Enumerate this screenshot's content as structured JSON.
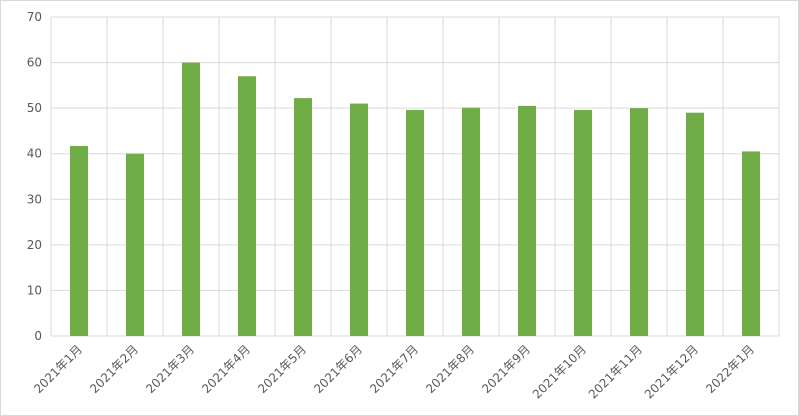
{
  "chart_data": {
    "type": "bar",
    "categories": [
      "2021年1月",
      "2021年2月",
      "2021年3月",
      "2021年4月",
      "2021年5月",
      "2021年6月",
      "2021年7月",
      "2021年8月",
      "2021年9月",
      "2021年10月",
      "2021年11月",
      "2021年12月",
      "2022年1月"
    ],
    "values": [
      41.7,
      40,
      60,
      57,
      52.2,
      51,
      49.6,
      50.1,
      50.5,
      49.6,
      50,
      49,
      40.5
    ],
    "color": "#70ad47",
    "ylim": [
      0,
      70
    ],
    "yticks": [
      0,
      10,
      20,
      30,
      40,
      50,
      60,
      70
    ],
    "grid": true
  }
}
